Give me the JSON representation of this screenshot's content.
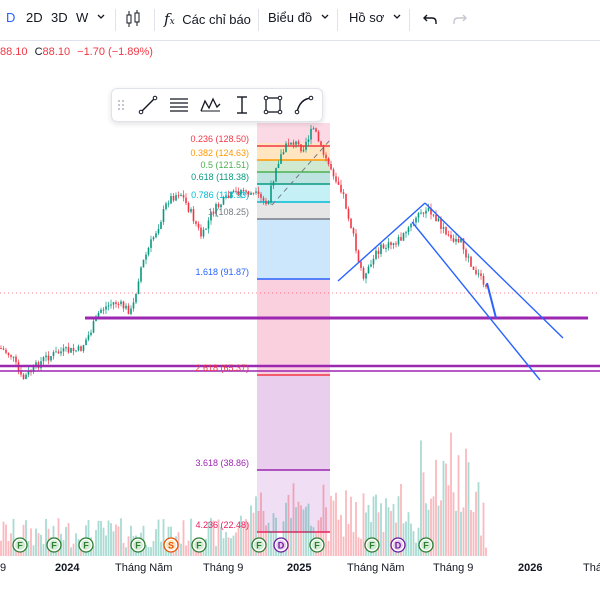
{
  "toolbar": {
    "interval_d": "D",
    "layout_2d": "2D",
    "layout_3d": "3D",
    "interval_w": "W",
    "indicators_label": "Các chỉ báo",
    "chart_label": "Biểu đồ",
    "profile_label": "Hồ sơ",
    "icons": [
      "chevron-down-icon",
      "candles-icon",
      "fx-icon",
      "undo-icon",
      "redo-icon"
    ]
  },
  "ohlc": {
    "open_value": "88.10",
    "close_key": "C",
    "close_value": "88.10",
    "change": "−1.70 (−1.89%)"
  },
  "drawing_toolbar": {
    "tools": [
      "drag-handle-icon",
      "trend-line-icon",
      "fib-retracement-icon",
      "pattern-icon",
      "anchor-text-icon",
      "rectangle-icon",
      "curve-icon"
    ]
  },
  "fib_levels": [
    {
      "label": "0.236 (128.50)",
      "color": "#f23645"
    },
    {
      "label": "0.382 (124.63)",
      "color": "#ff9800"
    },
    {
      "label": "0.5 (121.51)",
      "color": "#4caf50"
    },
    {
      "label": "0.618 (118.38)",
      "color": "#089981"
    },
    {
      "label": "0.786 (113.93)",
      "color": "#00bcd4"
    },
    {
      "label": "1 (108.25)",
      "color": "#787b86"
    },
    {
      "label": "1.618 (91.87)",
      "color": "#2962ff"
    },
    {
      "label": "2.618 (65.37)",
      "color": "#f23645"
    },
    {
      "label": "3.618 (38.86)",
      "color": "#9c27b0"
    },
    {
      "label": "4.236 (22.48)",
      "color": "#e91e63"
    }
  ],
  "event_markers": [
    "F",
    "F",
    "F",
    "F",
    "S",
    "F",
    "F",
    "D",
    "F",
    "F",
    "D",
    "F"
  ],
  "x_axis": [
    "9",
    "2024",
    "Tháng Năm",
    "Tháng 9",
    "2025",
    "Tháng Năm",
    "Tháng 9",
    "2026",
    "Thán"
  ],
  "colors": {
    "up": "#089981",
    "down": "#f23645",
    "accent": "#2962ff",
    "purple": "#9c27b0"
  }
}
